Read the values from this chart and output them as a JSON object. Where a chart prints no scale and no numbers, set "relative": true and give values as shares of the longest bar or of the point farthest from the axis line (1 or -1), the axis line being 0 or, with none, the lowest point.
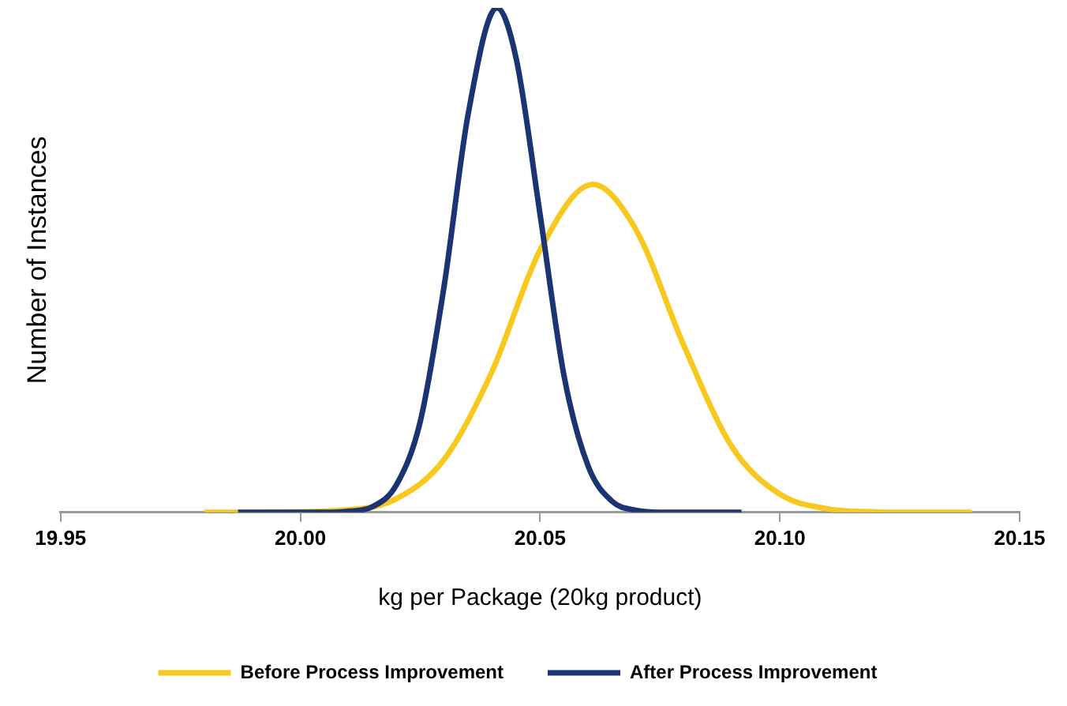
{
  "chart_data": {
    "type": "line",
    "xlabel": "kg per Package (20kg product)",
    "ylabel": "Number of Instances",
    "relative": true,
    "xlim": [
      19.95,
      20.15
    ],
    "xticks": [
      {
        "value": 19.95,
        "label": "19.95"
      },
      {
        "value": 20.0,
        "label": "20.00"
      },
      {
        "value": 20.05,
        "label": "20.05"
      },
      {
        "value": 20.1,
        "label": "20.10"
      },
      {
        "value": 20.15,
        "label": "20.15"
      }
    ],
    "grid": false,
    "legend": "bottom",
    "marker": "none",
    "line_style": "solid",
    "series": [
      {
        "name": "Before Process Improvement",
        "color": "#f7c81e",
        "x": [
          19.98,
          19.99,
          20.01,
          20.02,
          20.03,
          20.04,
          20.05,
          20.061,
          20.07,
          20.08,
          20.09,
          20.1,
          20.11,
          20.12,
          20.13,
          20.14
        ],
        "values": [
          0,
          0,
          0.005,
          0.027,
          0.105,
          0.28,
          0.52,
          0.65,
          0.56,
          0.33,
          0.13,
          0.036,
          0.007,
          0.001,
          0,
          0
        ]
      },
      {
        "name": "After Process Improvement",
        "color": "#1b3572",
        "x": [
          19.987,
          19.995,
          20.0,
          20.005,
          20.01,
          20.015,
          20.02,
          20.025,
          20.03,
          20.035,
          20.041,
          20.045,
          20.05,
          20.055,
          20.06,
          20.065,
          20.07,
          20.075,
          20.08,
          20.092
        ],
        "values": [
          0,
          0,
          0,
          0,
          0.002,
          0.011,
          0.054,
          0.18,
          0.45,
          0.79,
          1,
          0.9,
          0.59,
          0.27,
          0.092,
          0.022,
          0.004,
          0,
          0,
          0
        ]
      }
    ]
  }
}
